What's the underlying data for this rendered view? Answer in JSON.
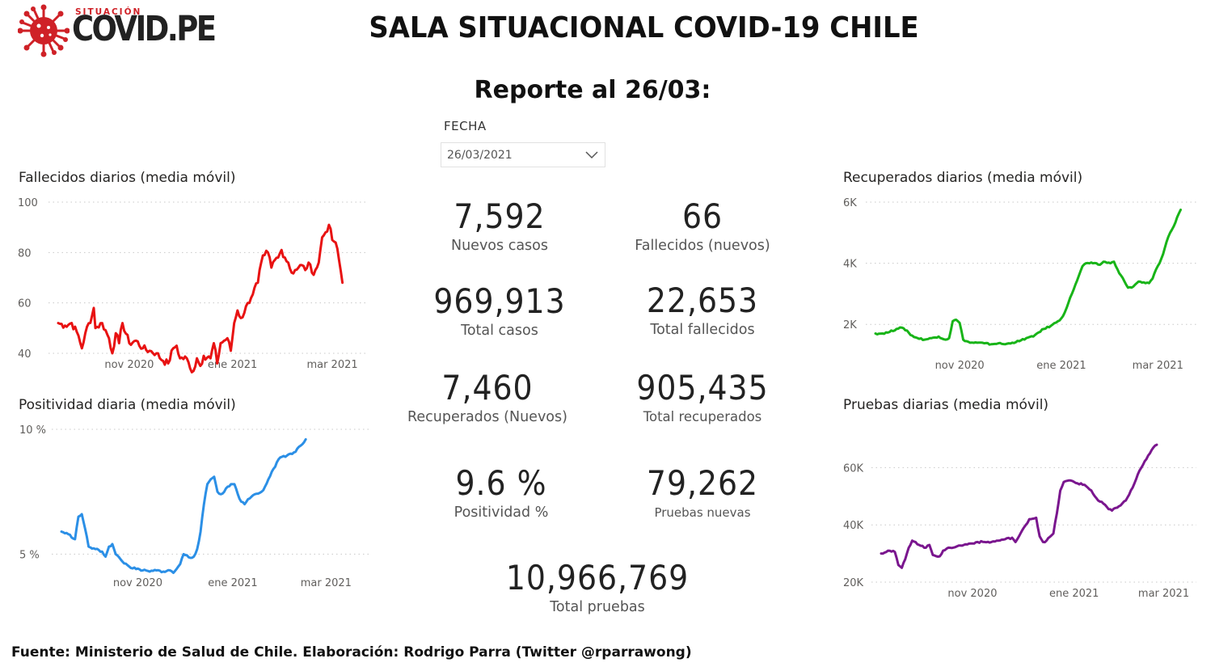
{
  "logo": {
    "small": "SITUACIÓN",
    "big": "COVID.PE"
  },
  "title": "SALA SITUACIONAL COVID-19 CHILE",
  "report": "Reporte al 26/03:",
  "slicer": {
    "label": "FECHA",
    "value": "26/03/2021"
  },
  "kpis": [
    {
      "value": "7,592",
      "label": "Nuevos casos"
    },
    {
      "value": "66",
      "label": "Fallecidos (nuevos)"
    },
    {
      "value": "969,913",
      "label": "Total casos"
    },
    {
      "value": "22,653",
      "label": "Total fallecidos"
    },
    {
      "value": "7,460",
      "label": "Recuperados (Nuevos)"
    },
    {
      "value": "905,435",
      "label": "Total recuperados"
    },
    {
      "value": "9.6 %",
      "label": "Positividad %"
    },
    {
      "value": "79,262",
      "label": "Pruebas nuevas"
    },
    {
      "value": "10,966,769",
      "label": "Total pruebas"
    }
  ],
  "footer": "Fuente: Ministerio de Salud de Chile. Elaboración: Rodrigo Parra (Twitter @rparrawong)",
  "colors": {
    "red": "#e81212",
    "blue": "#2b8fe6",
    "green": "#18b418",
    "purple": "#7a168e",
    "logo_red": "#cf2127"
  },
  "chart_data": [
    {
      "type": "line",
      "title": "Fallecidos diarios (media móvil)",
      "ylim": [
        40,
        100
      ],
      "yticks": [
        40,
        60,
        80,
        100
      ],
      "ytick_labels": [
        "40",
        "60",
        "80",
        "100"
      ],
      "xlim": [
        0,
        183
      ],
      "xticks": [
        {
          "x": 42,
          "label": "nov 2020"
        },
        {
          "x": 103,
          "label": "ene 2021"
        },
        {
          "x": 162,
          "label": "mar 2021"
        }
      ],
      "color": "#e81212",
      "keypoints": [
        [
          0,
          52
        ],
        [
          4,
          51
        ],
        [
          8,
          52
        ],
        [
          12,
          47
        ],
        [
          14,
          42
        ],
        [
          16,
          48
        ],
        [
          20,
          55
        ],
        [
          21,
          58
        ],
        [
          22,
          50
        ],
        [
          26,
          52
        ],
        [
          30,
          46
        ],
        [
          32,
          40
        ],
        [
          34,
          48
        ],
        [
          36,
          44
        ],
        [
          38,
          52
        ],
        [
          42,
          44
        ],
        [
          46,
          45
        ],
        [
          50,
          42
        ],
        [
          54,
          41
        ],
        [
          58,
          40
        ],
        [
          62,
          37
        ],
        [
          65,
          36
        ],
        [
          68,
          42
        ],
        [
          70,
          43
        ],
        [
          72,
          38
        ],
        [
          76,
          38
        ],
        [
          78,
          34
        ],
        [
          80,
          33
        ],
        [
          82,
          38
        ],
        [
          84,
          35
        ],
        [
          86,
          39
        ],
        [
          90,
          38
        ],
        [
          92,
          44
        ],
        [
          94,
          36
        ],
        [
          96,
          44
        ],
        [
          100,
          46
        ],
        [
          102,
          41
        ],
        [
          104,
          52
        ],
        [
          106,
          57
        ],
        [
          108,
          54
        ],
        [
          110,
          56
        ],
        [
          112,
          60
        ],
        [
          114,
          62
        ],
        [
          116,
          66
        ],
        [
          118,
          68
        ],
        [
          120,
          76
        ],
        [
          122,
          79
        ],
        [
          124,
          80
        ],
        [
          126,
          74
        ],
        [
          128,
          77
        ],
        [
          130,
          78
        ],
        [
          132,
          81
        ],
        [
          134,
          78
        ],
        [
          136,
          76
        ],
        [
          138,
          72
        ],
        [
          140,
          73
        ],
        [
          142,
          74
        ],
        [
          144,
          75
        ],
        [
          146,
          73
        ],
        [
          148,
          76
        ],
        [
          150,
          72
        ],
        [
          152,
          73
        ],
        [
          154,
          76
        ],
        [
          156,
          86
        ],
        [
          158,
          88
        ],
        [
          160,
          91
        ],
        [
          162,
          85
        ],
        [
          164,
          84
        ],
        [
          166,
          77
        ],
        [
          168,
          68
        ]
      ],
      "noise": 1.4
    },
    {
      "type": "line",
      "title": "Recuperados diarios (media móvil)",
      "ylim": [
        1000,
        6000
      ],
      "yticks": [
        2000,
        4000,
        6000
      ],
      "ytick_labels": [
        "2K",
        "4K",
        "6K"
      ],
      "xlim": [
        0,
        183
      ],
      "xticks": [
        {
          "x": 48,
          "label": "nov 2020"
        },
        {
          "x": 106,
          "label": "ene 2021"
        },
        {
          "x": 161,
          "label": "mar 2021"
        }
      ],
      "color": "#18b418",
      "keypoints": [
        [
          0,
          1700
        ],
        [
          4,
          1700
        ],
        [
          8,
          1750
        ],
        [
          12,
          1850
        ],
        [
          14,
          1900
        ],
        [
          18,
          1800
        ],
        [
          20,
          1650
        ],
        [
          24,
          1550
        ],
        [
          28,
          1500
        ],
        [
          32,
          1550
        ],
        [
          36,
          1600
        ],
        [
          40,
          1500
        ],
        [
          42,
          1550
        ],
        [
          44,
          2100
        ],
        [
          46,
          2150
        ],
        [
          48,
          2050
        ],
        [
          50,
          1500
        ],
        [
          54,
          1400
        ],
        [
          58,
          1400
        ],
        [
          62,
          1380
        ],
        [
          66,
          1350
        ],
        [
          70,
          1380
        ],
        [
          74,
          1350
        ],
        [
          78,
          1400
        ],
        [
          82,
          1450
        ],
        [
          86,
          1550
        ],
        [
          90,
          1600
        ],
        [
          92,
          1700
        ],
        [
          96,
          1850
        ],
        [
          100,
          1950
        ],
        [
          104,
          2100
        ],
        [
          106,
          2200
        ],
        [
          108,
          2400
        ],
        [
          110,
          2700
        ],
        [
          112,
          3000
        ],
        [
          114,
          3300
        ],
        [
          116,
          3600
        ],
        [
          118,
          3900
        ],
        [
          120,
          4000
        ],
        [
          124,
          4000
        ],
        [
          128,
          3950
        ],
        [
          130,
          4050
        ],
        [
          134,
          4000
        ],
        [
          136,
          4050
        ],
        [
          138,
          3800
        ],
        [
          140,
          3600
        ],
        [
          142,
          3400
        ],
        [
          144,
          3200
        ],
        [
          146,
          3200
        ],
        [
          148,
          3300
        ],
        [
          150,
          3400
        ],
        [
          154,
          3350
        ],
        [
          156,
          3350
        ],
        [
          158,
          3500
        ],
        [
          160,
          3800
        ],
        [
          162,
          4000
        ],
        [
          164,
          4300
        ],
        [
          166,
          4700
        ],
        [
          168,
          5000
        ],
        [
          170,
          5200
        ],
        [
          172,
          5500
        ],
        [
          174,
          5750
        ]
      ],
      "noise": 25
    },
    {
      "type": "line",
      "title": "Positividad diaria (media móvil)",
      "ylim": [
        4.3,
        10
      ],
      "yticks": [
        5,
        10
      ],
      "ytick_labels": [
        "5 %",
        "10 %"
      ],
      "xlim": [
        0,
        183
      ],
      "xticks": [
        {
          "x": 45,
          "label": "nov 2020"
        },
        {
          "x": 101,
          "label": "ene 2021"
        },
        {
          "x": 156,
          "label": "mar 2021"
        }
      ],
      "color": "#2b8fe6",
      "keypoints": [
        [
          0,
          5.9
        ],
        [
          4,
          5.8
        ],
        [
          8,
          5.6
        ],
        [
          10,
          6.5
        ],
        [
          12,
          6.6
        ],
        [
          14,
          6.0
        ],
        [
          16,
          5.3
        ],
        [
          20,
          5.2
        ],
        [
          24,
          5.1
        ],
        [
          26,
          4.9
        ],
        [
          28,
          5.3
        ],
        [
          30,
          5.4
        ],
        [
          32,
          5.0
        ],
        [
          36,
          4.7
        ],
        [
          40,
          4.5
        ],
        [
          44,
          4.4
        ],
        [
          48,
          4.35
        ],
        [
          52,
          4.3
        ],
        [
          56,
          4.35
        ],
        [
          60,
          4.3
        ],
        [
          64,
          4.35
        ],
        [
          66,
          4.25
        ],
        [
          70,
          4.6
        ],
        [
          72,
          5.0
        ],
        [
          74,
          4.95
        ],
        [
          76,
          4.85
        ],
        [
          78,
          4.9
        ],
        [
          80,
          5.2
        ],
        [
          82,
          5.9
        ],
        [
          84,
          7.0
        ],
        [
          86,
          7.8
        ],
        [
          88,
          8.0
        ],
        [
          90,
          8.1
        ],
        [
          92,
          7.5
        ],
        [
          94,
          7.4
        ],
        [
          96,
          7.5
        ],
        [
          98,
          7.7
        ],
        [
          100,
          7.8
        ],
        [
          102,
          7.8
        ],
        [
          104,
          7.4
        ],
        [
          106,
          7.1
        ],
        [
          108,
          7.0
        ],
        [
          110,
          7.2
        ],
        [
          112,
          7.3
        ],
        [
          114,
          7.4
        ],
        [
          118,
          7.5
        ],
        [
          120,
          7.7
        ],
        [
          122,
          8.0
        ],
        [
          124,
          8.3
        ],
        [
          126,
          8.5
        ],
        [
          128,
          8.8
        ],
        [
          130,
          8.9
        ],
        [
          132,
          8.9
        ],
        [
          134,
          9.0
        ],
        [
          138,
          9.1
        ],
        [
          140,
          9.3
        ],
        [
          142,
          9.4
        ],
        [
          144,
          9.6
        ]
      ],
      "noise": 0.04
    },
    {
      "type": "line",
      "title": "Pruebas diarias (media móvil)",
      "ylim": [
        20000,
        70000
      ],
      "yticks": [
        20000,
        40000,
        60000
      ],
      "ytick_labels": [
        "20K",
        "40K",
        "60K"
      ],
      "xlim": [
        0,
        183
      ],
      "xticks": [
        {
          "x": 53,
          "label": "nov 2020"
        },
        {
          "x": 112,
          "label": "ene 2021"
        },
        {
          "x": 164,
          "label": "mar 2021"
        }
      ],
      "color": "#7a168e",
      "keypoints": [
        [
          0,
          30000
        ],
        [
          4,
          31000
        ],
        [
          8,
          30500
        ],
        [
          10,
          26000
        ],
        [
          12,
          25000
        ],
        [
          14,
          28000
        ],
        [
          16,
          32000
        ],
        [
          18,
          34500
        ],
        [
          20,
          34000
        ],
        [
          22,
          33000
        ],
        [
          26,
          32000
        ],
        [
          28,
          33000
        ],
        [
          30,
          29500
        ],
        [
          34,
          29000
        ],
        [
          36,
          31000
        ],
        [
          40,
          32000
        ],
        [
          44,
          32500
        ],
        [
          48,
          33000
        ],
        [
          52,
          33500
        ],
        [
          56,
          34000
        ],
        [
          60,
          34000
        ],
        [
          64,
          34000
        ],
        [
          68,
          34500
        ],
        [
          72,
          35000
        ],
        [
          76,
          35500
        ],
        [
          78,
          34000
        ],
        [
          80,
          36000
        ],
        [
          84,
          40000
        ],
        [
          86,
          42000
        ],
        [
          90,
          42500
        ],
        [
          92,
          36000
        ],
        [
          94,
          34000
        ],
        [
          96,
          34500
        ],
        [
          100,
          37000
        ],
        [
          102,
          44000
        ],
        [
          104,
          52000
        ],
        [
          106,
          55000
        ],
        [
          110,
          55500
        ],
        [
          114,
          54500
        ],
        [
          118,
          54000
        ],
        [
          122,
          52000
        ],
        [
          124,
          50000
        ],
        [
          126,
          48500
        ],
        [
          130,
          47000
        ],
        [
          132,
          45500
        ],
        [
          134,
          45000
        ],
        [
          138,
          46500
        ],
        [
          142,
          48500
        ],
        [
          146,
          53000
        ],
        [
          150,
          59000
        ],
        [
          154,
          63000
        ],
        [
          156,
          65000
        ],
        [
          158,
          67000
        ],
        [
          160,
          68000
        ]
      ],
      "noise": 300
    }
  ]
}
